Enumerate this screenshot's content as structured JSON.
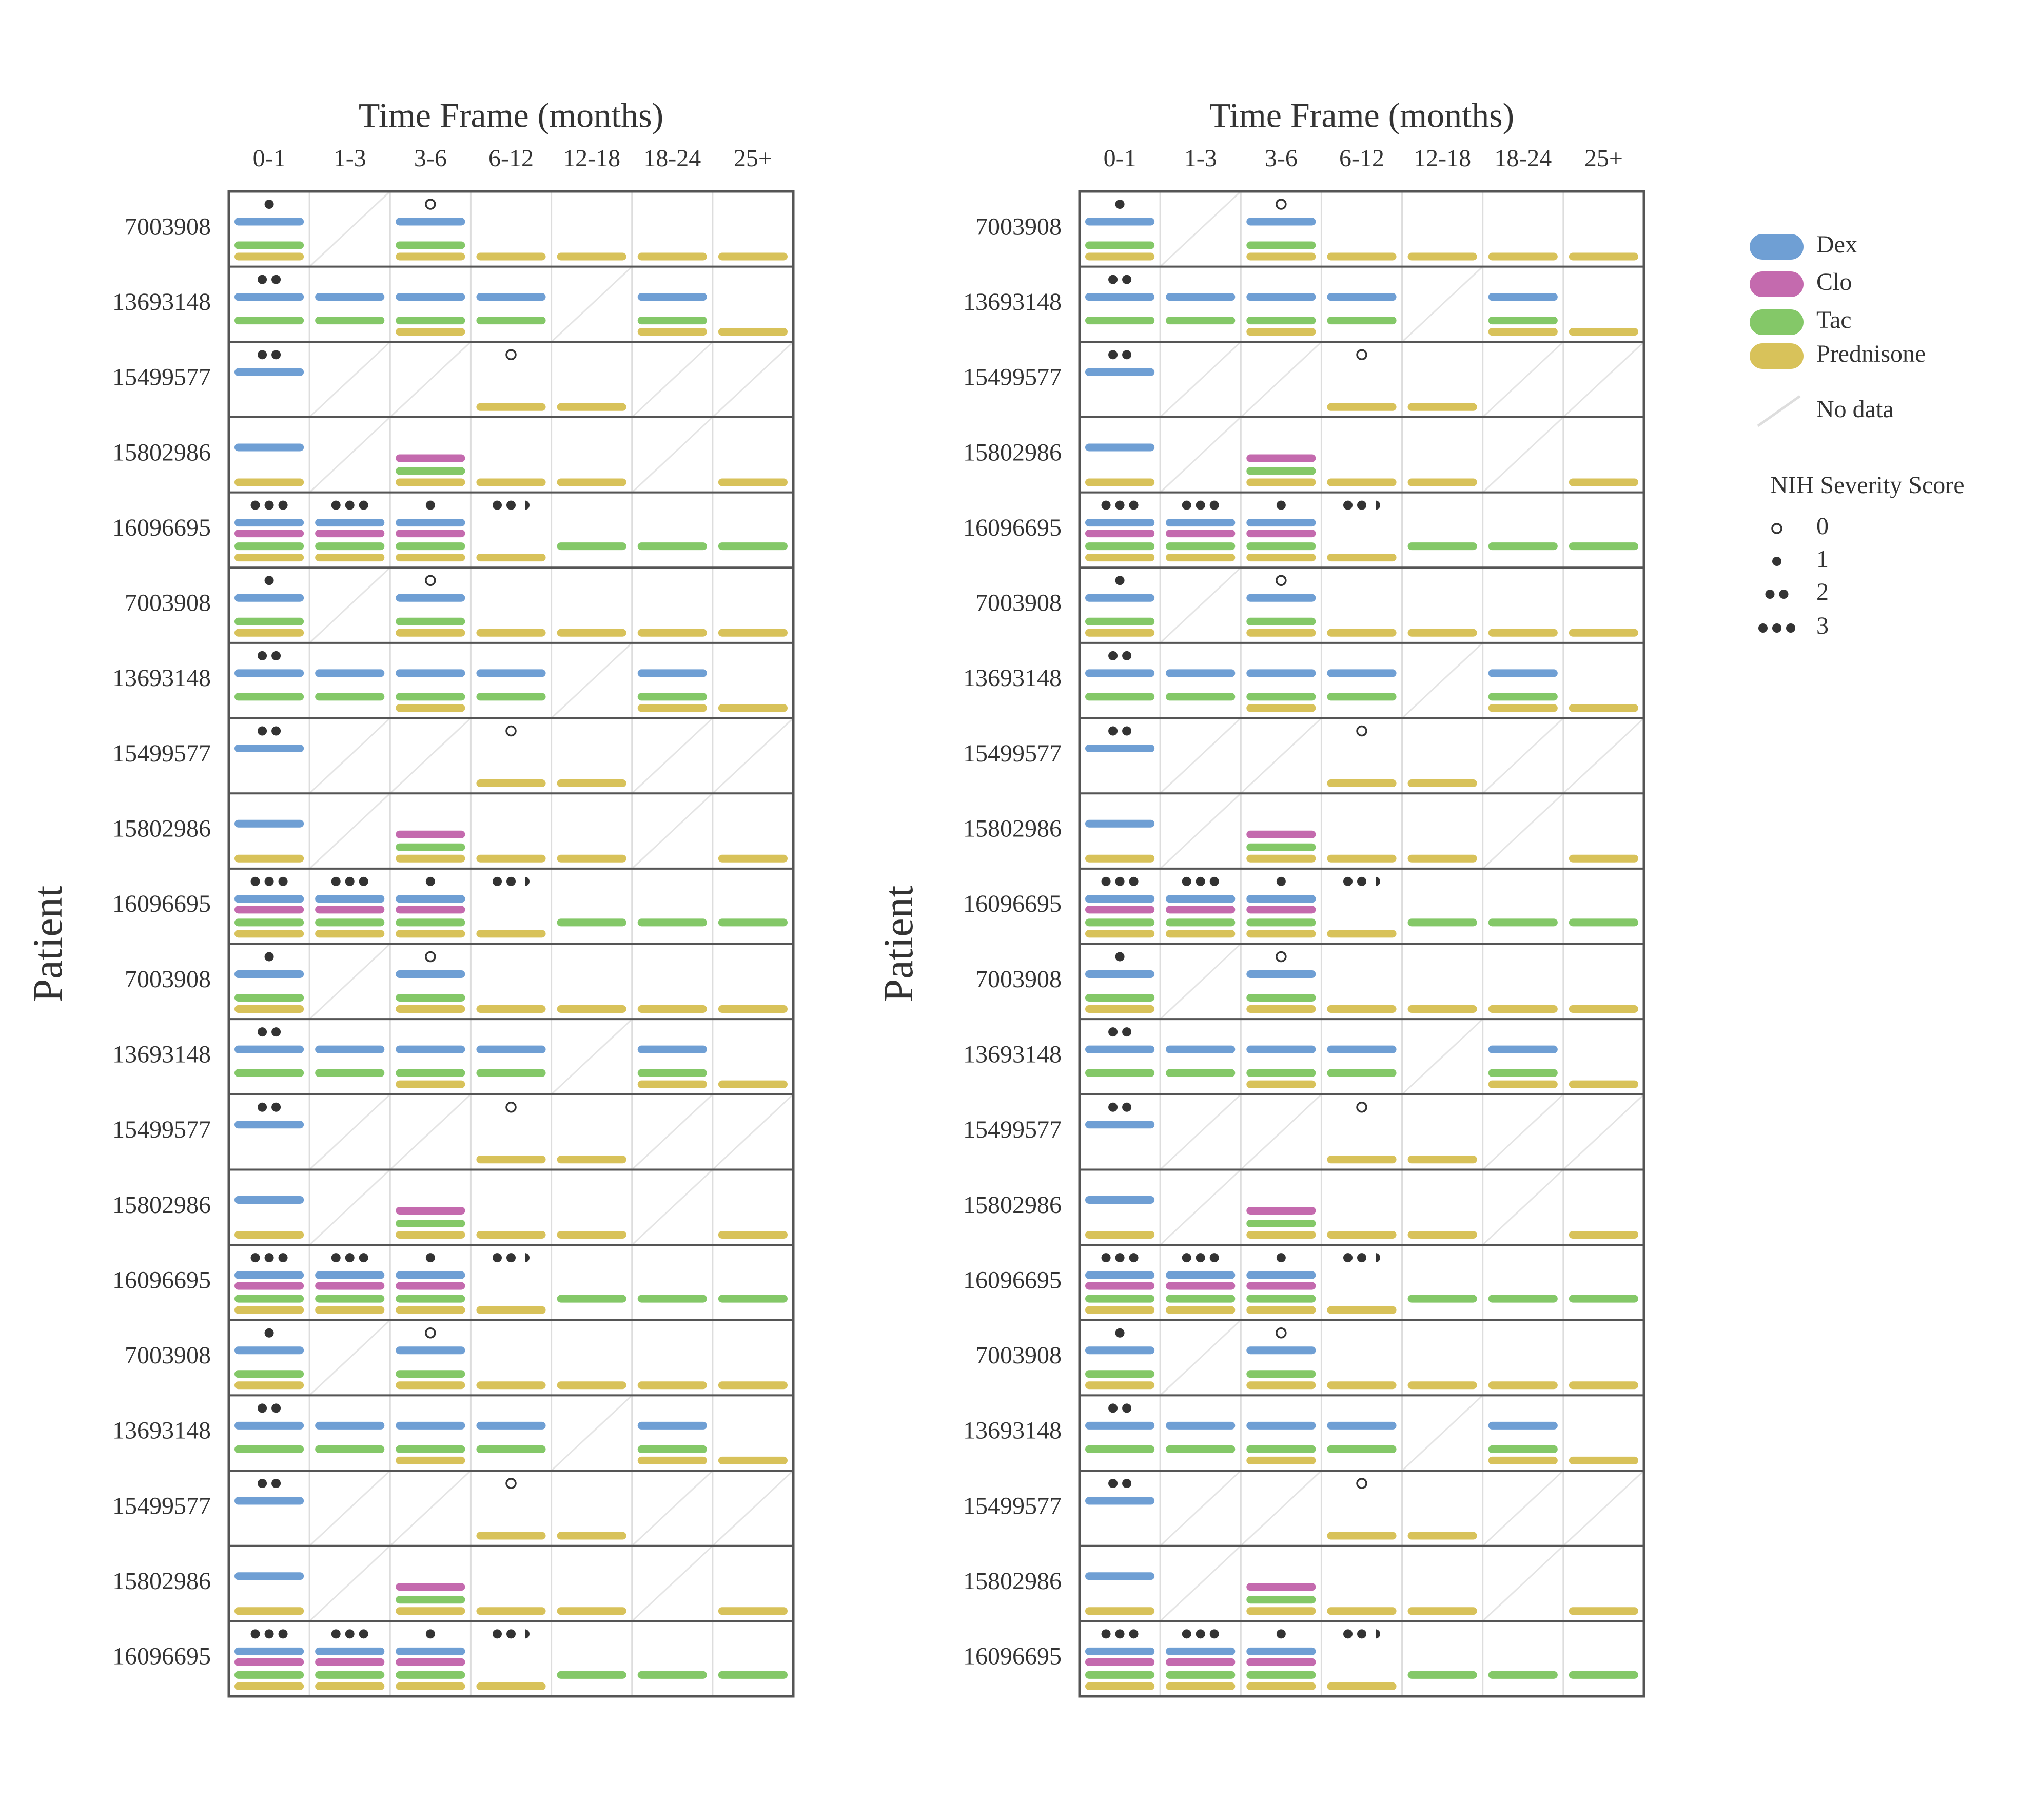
{
  "chart_data": {
    "type": "table",
    "panels": 2,
    "xlabel": "Time Frame (months)",
    "ylabel": "Patient",
    "timeframes": [
      "0-1",
      "1-3",
      "3-6",
      "6-12",
      "12-18",
      "18-24",
      "25+"
    ],
    "patients": [
      "7003908",
      "13693148",
      "15499577",
      "15802986",
      "16096695",
      "7003908",
      "13693148",
      "15499577",
      "15802986",
      "16096695",
      "7003908",
      "13693148",
      "15499577",
      "15802986",
      "16096695",
      "7003908",
      "13693148",
      "15499577",
      "15802986",
      "16096695"
    ],
    "drugs": [
      {
        "name": "Dex",
        "color": "#6f9fd4"
      },
      {
        "name": "Clo",
        "color": "#c46aae"
      },
      {
        "name": "Tac",
        "color": "#84c868"
      },
      {
        "name": "Prednisone",
        "color": "#d8c25a"
      }
    ],
    "no_data_label": "No data",
    "severity_title": "NIH Severity Score",
    "severity_levels": [
      "0",
      "1",
      "2",
      "3"
    ],
    "patient_profiles": {
      "7003908": {
        "severity": [
          1,
          null,
          0,
          null,
          null,
          null,
          null
        ],
        "no_data": [
          false,
          true,
          false,
          false,
          false,
          false,
          false
        ],
        "Dex": [
          1,
          0,
          1,
          0,
          0,
          0,
          0
        ],
        "Clo": [
          0,
          0,
          0,
          0,
          0,
          0,
          0
        ],
        "Tac": [
          1,
          0,
          1,
          0,
          0,
          0,
          0
        ],
        "Prednisone": [
          1,
          0,
          1,
          1,
          1,
          1,
          1
        ]
      },
      "13693148": {
        "severity": [
          2,
          null,
          null,
          null,
          null,
          null,
          null
        ],
        "no_data": [
          false,
          false,
          false,
          false,
          true,
          false,
          false
        ],
        "Dex": [
          1,
          1,
          1,
          1,
          0,
          1,
          0
        ],
        "Clo": [
          0,
          0,
          0,
          0,
          0,
          0,
          0
        ],
        "Tac": [
          1,
          1,
          1,
          1,
          0,
          1,
          0
        ],
        "Prednisone": [
          0,
          0,
          1,
          0,
          0,
          1,
          1
        ]
      },
      "15499577": {
        "severity": [
          2,
          null,
          null,
          0,
          null,
          null,
          null
        ],
        "no_data": [
          false,
          true,
          true,
          false,
          false,
          true,
          true
        ],
        "Dex": [
          1,
          0,
          0,
          0,
          0,
          0,
          0
        ],
        "Clo": [
          0,
          0,
          0,
          0,
          0,
          0,
          0
        ],
        "Tac": [
          0,
          0,
          0,
          0,
          0,
          0,
          0
        ],
        "Prednisone": [
          0,
          0,
          0,
          1,
          1,
          0,
          0
        ]
      },
      "15802986": {
        "severity": [
          null,
          null,
          null,
          null,
          null,
          null,
          null
        ],
        "no_data": [
          false,
          true,
          false,
          false,
          false,
          true,
          false
        ],
        "Dex": [
          1,
          0,
          0,
          0,
          0,
          0,
          0
        ],
        "Clo": [
          0,
          0,
          1,
          0,
          0,
          0,
          0
        ],
        "Tac": [
          0,
          0,
          1,
          0,
          0,
          0,
          0
        ],
        "Prednisone": [
          1,
          0,
          1,
          1,
          1,
          0,
          1
        ]
      },
      "16096695": {
        "severity": [
          3,
          3,
          1,
          2.5,
          null,
          null,
          null
        ],
        "no_data": [
          false,
          false,
          false,
          false,
          false,
          false,
          false
        ],
        "Dex": [
          1,
          1,
          1,
          0,
          0,
          0,
          0
        ],
        "Clo": [
          1,
          1,
          1,
          0,
          0,
          0,
          0
        ],
        "Tac": [
          1,
          1,
          1,
          0,
          1,
          1,
          1
        ],
        "Prednisone": [
          1,
          1,
          1,
          1,
          0,
          0,
          0
        ]
      }
    }
  }
}
